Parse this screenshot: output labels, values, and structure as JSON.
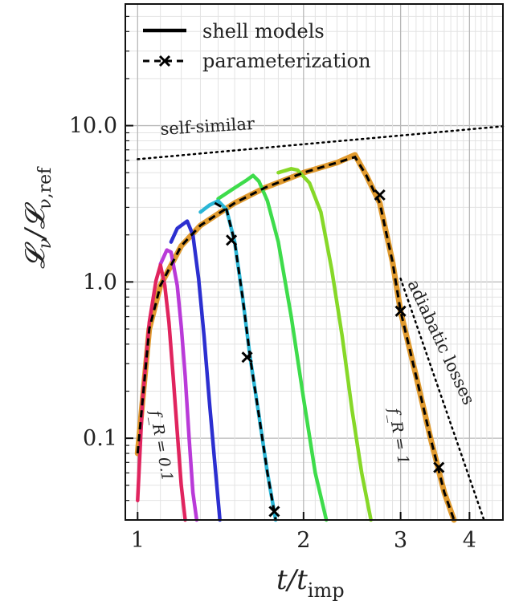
{
  "chart_data": {
    "type": "line",
    "xlabel": "t/t_imp",
    "ylabel": "𝓛_ν/𝓛_ν,ref",
    "x_scale": "log",
    "y_scale": "log",
    "xlim": [
      0.95,
      4.6
    ],
    "ylim": [
      0.03,
      60
    ],
    "x_ticks": [
      {
        "v": 1,
        "label": "1"
      },
      {
        "v": 2,
        "label": "2"
      },
      {
        "v": 3,
        "label": "3"
      },
      {
        "v": 4,
        "label": "4"
      }
    ],
    "y_ticks": [
      {
        "v": 0.1,
        "label": "0.1"
      },
      {
        "v": 1.0,
        "label": "1.0"
      },
      {
        "v": 10.0,
        "label": "10.0"
      }
    ],
    "grid": true,
    "legend": {
      "position": "top-left",
      "entries": [
        {
          "label": "shell models",
          "style": "solid"
        },
        {
          "label": "parameterization",
          "style": "dashed-x"
        }
      ]
    },
    "annotations": {
      "self_similar": "self-similar",
      "adiabatic": "adiabatic losses",
      "fr_low": "f_R = 0.1",
      "fr_high": "f_R = 1"
    },
    "colors": {
      "fr_0_1": "#e0245e",
      "fr_0_2": "#b93ad8",
      "fr_0_3": "#2c2fd0",
      "fr_0_4": "#2bb6d6",
      "fr_0_5": "#2bd873",
      "fr_0_6": "#3edc4b",
      "fr_0_8": "#86d828",
      "fr_1": "#e09a2e",
      "parameterization": "#000000",
      "reference": "#000000"
    },
    "series": [
      {
        "key": "fr_0_1",
        "x": [
          1.0,
          1.02,
          1.05,
          1.08,
          1.1,
          1.12,
          1.14,
          1.16,
          1.18,
          1.2,
          1.22
        ],
        "y": [
          0.04,
          0.17,
          0.55,
          1.02,
          1.28,
          0.95,
          0.55,
          0.25,
          0.11,
          0.05,
          0.03
        ]
      },
      {
        "key": "fr_0_2",
        "x": [
          1.1,
          1.13,
          1.15,
          1.18,
          1.2,
          1.22,
          1.24,
          1.26,
          1.28
        ],
        "y": [
          1.3,
          1.6,
          1.55,
          0.95,
          0.52,
          0.25,
          0.1,
          0.045,
          0.03
        ]
      },
      {
        "key": "fr_0_3",
        "x": [
          1.15,
          1.18,
          1.23,
          1.26,
          1.29,
          1.32,
          1.35,
          1.38,
          1.41
        ],
        "y": [
          1.8,
          2.2,
          2.45,
          2.0,
          1.05,
          0.45,
          0.17,
          0.07,
          0.03
        ]
      },
      {
        "key": "fr_0_4",
        "x": [
          1.3,
          1.35,
          1.4,
          1.45,
          1.5,
          1.55,
          1.6,
          1.66,
          1.72,
          1.78
        ],
        "y": [
          2.8,
          3.1,
          3.3,
          2.9,
          1.8,
          0.8,
          0.33,
          0.14,
          0.06,
          0.03
        ]
      },
      {
        "key": "fr_0_6",
        "x": [
          1.4,
          1.5,
          1.58,
          1.62,
          1.66,
          1.72,
          1.8,
          1.9,
          2.0,
          2.1,
          2.2
        ],
        "y": [
          3.4,
          4.0,
          4.5,
          4.8,
          4.4,
          3.3,
          1.8,
          0.6,
          0.18,
          0.06,
          0.03
        ]
      },
      {
        "key": "fr_0_8",
        "x": [
          1.8,
          1.9,
          1.95,
          2.05,
          2.15,
          2.25,
          2.35,
          2.45,
          2.55,
          2.65
        ],
        "y": [
          5.0,
          5.3,
          5.2,
          4.3,
          2.8,
          1.2,
          0.45,
          0.15,
          0.06,
          0.03
        ]
      },
      {
        "key": "fr_1",
        "x": [
          1.0,
          1.05,
          1.1,
          1.2,
          1.3,
          1.5,
          1.7,
          2.0,
          2.3,
          2.48,
          2.6,
          2.75,
          2.9,
          3.0,
          3.2,
          3.4,
          3.6,
          3.75
        ],
        "y": [
          0.08,
          0.5,
          0.95,
          1.7,
          2.3,
          3.2,
          4.0,
          5.0,
          5.8,
          6.5,
          4.8,
          3.2,
          1.35,
          0.65,
          0.25,
          0.1,
          0.045,
          0.03
        ]
      },
      {
        "key": "parameterization",
        "style": "dashed-x",
        "x": [
          1.0,
          1.05,
          1.1,
          1.2,
          1.3,
          1.5,
          1.7,
          2.0,
          2.3,
          2.48,
          2.6,
          2.75,
          2.9,
          3.0,
          3.2,
          3.4,
          3.6,
          3.75
        ],
        "y": [
          0.08,
          0.5,
          0.95,
          1.7,
          2.3,
          3.2,
          4.0,
          5.0,
          5.8,
          6.3,
          4.8,
          3.2,
          1.35,
          0.65,
          0.25,
          0.1,
          0.045,
          0.03
        ],
        "markers": [
          {
            "x": 2.75,
            "y": 3.6
          },
          {
            "x": 3.0,
            "y": 0.65
          },
          {
            "x": 3.52,
            "y": 0.065
          }
        ]
      },
      {
        "key": "parameterization",
        "style": "dashed-x",
        "x": [
          1.38,
          1.45,
          1.5,
          1.55,
          1.6,
          1.66,
          1.72,
          1.78
        ],
        "y": [
          3.2,
          2.9,
          1.8,
          0.8,
          0.33,
          0.14,
          0.06,
          0.03
        ],
        "markers": [
          {
            "x": 1.48,
            "y": 1.85
          },
          {
            "x": 1.58,
            "y": 0.33
          },
          {
            "x": 1.77,
            "y": 0.034
          }
        ]
      },
      {
        "key": "reference",
        "style": "dotted",
        "x": [
          1.0,
          4.6
        ],
        "y": [
          6.1,
          9.9
        ]
      },
      {
        "key": "reference",
        "style": "dotted",
        "x": [
          3.0,
          4.25
        ],
        "y": [
          1.05,
          0.03
        ]
      }
    ]
  }
}
